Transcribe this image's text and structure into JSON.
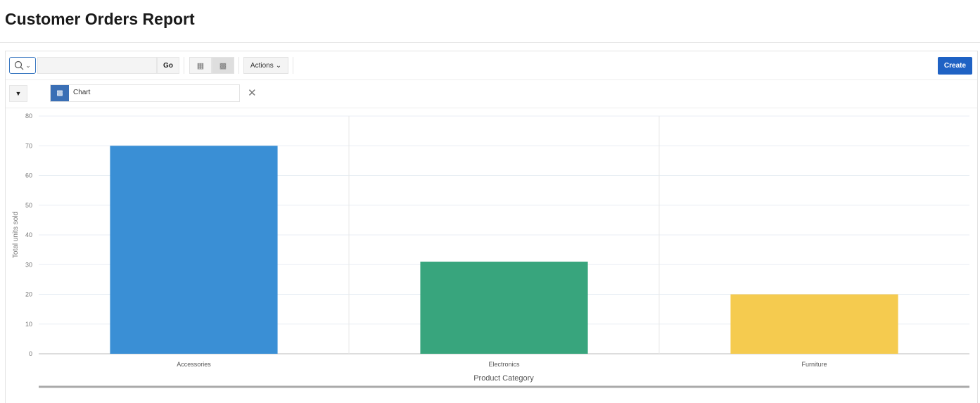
{
  "page": {
    "title": "Customer Orders Report"
  },
  "toolbar": {
    "search_placeholder": "",
    "go_label": "Go",
    "actions_label": "Actions",
    "create_label": "Create",
    "view_icons": [
      "grid-icon",
      "chart-icon"
    ],
    "active_view": "chart"
  },
  "filter": {
    "chip_label": "Chart"
  },
  "colors": {
    "accent": "#1f62c4",
    "bars": [
      "#3a8fd5",
      "#38a57d",
      "#f5cb4f"
    ]
  },
  "chart_data": {
    "type": "bar",
    "categories": [
      "Accessories",
      "Electronics",
      "Furniture"
    ],
    "values": [
      70,
      31,
      20
    ],
    "xlabel": "Product Category",
    "ylabel": "Total units sold",
    "ylim": [
      0,
      80
    ],
    "yticks": [
      0,
      10,
      20,
      30,
      40,
      50,
      60,
      70,
      80
    ],
    "grid": true
  }
}
